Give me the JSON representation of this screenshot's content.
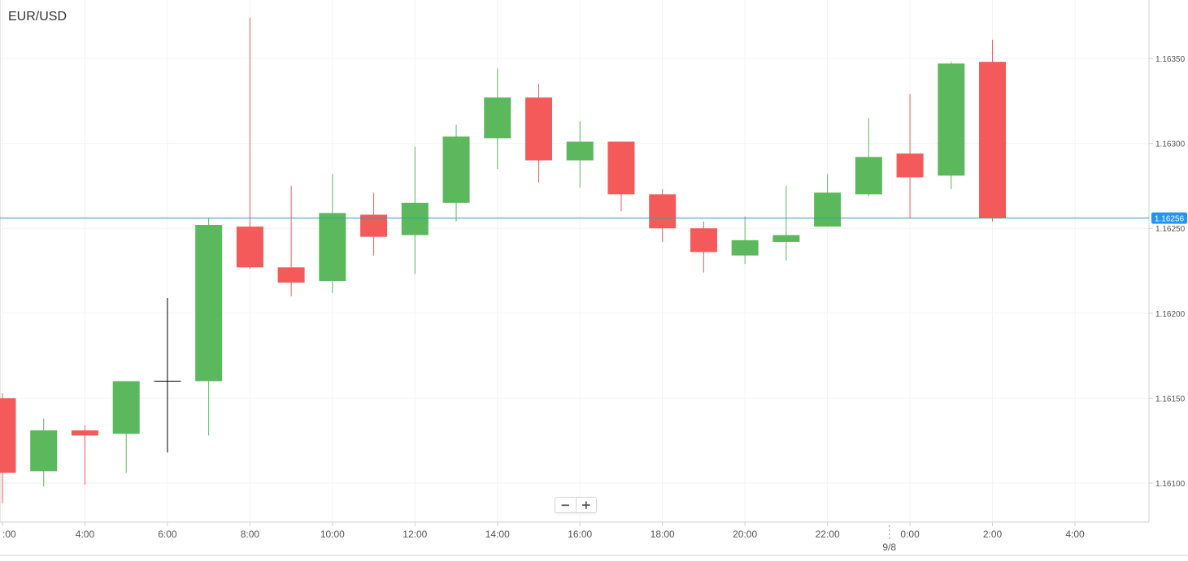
{
  "chart_data": {
    "type": "candlestick",
    "title": "EUR/USD",
    "ylim": [
      1.1608,
      1.16375
    ],
    "y_ticks": [
      "1.16100",
      "1.16150",
      "1.16200",
      "1.16250",
      "1.16300",
      "1.16350"
    ],
    "y_tick_values": [
      1.161,
      1.1615,
      1.162,
      1.1625,
      1.163,
      1.1635
    ],
    "x_ticks": [
      ":00",
      "4:00",
      "6:00",
      "8:00",
      "10:00",
      "12:00",
      "14:00",
      "16:00",
      "18:00",
      "20:00",
      "22:00",
      "0:00",
      "2:00",
      "4:00"
    ],
    "x_tick_hours": [
      2,
      4,
      6,
      8,
      10,
      12,
      14,
      16,
      18,
      20,
      22,
      24,
      26,
      28
    ],
    "x_range_hours": [
      2,
      30
    ],
    "date_label": "9/8",
    "date_separator_hour": 23.5,
    "current_price": 1.16256,
    "current_price_label": "1.16256",
    "grid": true,
    "candles": [
      {
        "hour": 2,
        "open": 1.1615,
        "high": 1.16153,
        "low": 1.16088,
        "close": 1.16106
      },
      {
        "hour": 3,
        "open": 1.16107,
        "high": 1.16138,
        "low": 1.16098,
        "close": 1.16131
      },
      {
        "hour": 4,
        "open": 1.16131,
        "high": 1.16134,
        "low": 1.16099,
        "close": 1.16128
      },
      {
        "hour": 5,
        "open": 1.16129,
        "high": 1.1616,
        "low": 1.16106,
        "close": 1.1616
      },
      {
        "hour": 6,
        "open": 1.1616,
        "high": 1.16209,
        "low": 1.16118,
        "close": 1.1616
      },
      {
        "hour": 7,
        "open": 1.1616,
        "high": 1.16256,
        "low": 1.16128,
        "close": 1.16252
      },
      {
        "hour": 8,
        "open": 1.16251,
        "high": 1.16374,
        "low": 1.16226,
        "close": 1.16227
      },
      {
        "hour": 9,
        "open": 1.16227,
        "high": 1.16275,
        "low": 1.1621,
        "close": 1.16218
      },
      {
        "hour": 10,
        "open": 1.16219,
        "high": 1.16282,
        "low": 1.16212,
        "close": 1.16259
      },
      {
        "hour": 11,
        "open": 1.16258,
        "high": 1.16271,
        "low": 1.16234,
        "close": 1.16245
      },
      {
        "hour": 12,
        "open": 1.16246,
        "high": 1.16298,
        "low": 1.16223,
        "close": 1.16265
      },
      {
        "hour": 13,
        "open": 1.16265,
        "high": 1.16311,
        "low": 1.16254,
        "close": 1.16304
      },
      {
        "hour": 14,
        "open": 1.16303,
        "high": 1.16344,
        "low": 1.16285,
        "close": 1.16327
      },
      {
        "hour": 15,
        "open": 1.16327,
        "high": 1.16335,
        "low": 1.16277,
        "close": 1.1629
      },
      {
        "hour": 16,
        "open": 1.1629,
        "high": 1.16313,
        "low": 1.16274,
        "close": 1.16301
      },
      {
        "hour": 17,
        "open": 1.16301,
        "high": 1.16301,
        "low": 1.1626,
        "close": 1.1627
      },
      {
        "hour": 18,
        "open": 1.1627,
        "high": 1.16273,
        "low": 1.16242,
        "close": 1.1625
      },
      {
        "hour": 19,
        "open": 1.1625,
        "high": 1.16254,
        "low": 1.16224,
        "close": 1.16236
      },
      {
        "hour": 20,
        "open": 1.16234,
        "high": 1.16257,
        "low": 1.16229,
        "close": 1.16243
      },
      {
        "hour": 21,
        "open": 1.16242,
        "high": 1.16275,
        "low": 1.16231,
        "close": 1.16246
      },
      {
        "hour": 22,
        "open": 1.16251,
        "high": 1.16282,
        "low": 1.16251,
        "close": 1.16271
      },
      {
        "hour": 23,
        "open": 1.1627,
        "high": 1.16315,
        "low": 1.16269,
        "close": 1.16292
      },
      {
        "hour": 24,
        "open": 1.16294,
        "high": 1.16329,
        "low": 1.16256,
        "close": 1.1628
      },
      {
        "hour": 25,
        "open": 1.16281,
        "high": 1.16348,
        "low": 1.16273,
        "close": 1.16347
      },
      {
        "hour": 26,
        "open": 1.16348,
        "high": 1.16361,
        "low": 1.16254,
        "close": 1.16256
      }
    ]
  },
  "colors": {
    "up": "#5cb85c",
    "down": "#f55a5a",
    "doji": "#000000",
    "grid": "#f3f3f3",
    "axis": "#d0d0d0",
    "text": "#555555",
    "price_line": "#26a3b8",
    "price_badge": "#2196f3"
  },
  "zoom": {
    "minus_icon": "minus-icon",
    "plus_icon": "plus-icon",
    "minus_label": "−",
    "plus_label": "+"
  }
}
